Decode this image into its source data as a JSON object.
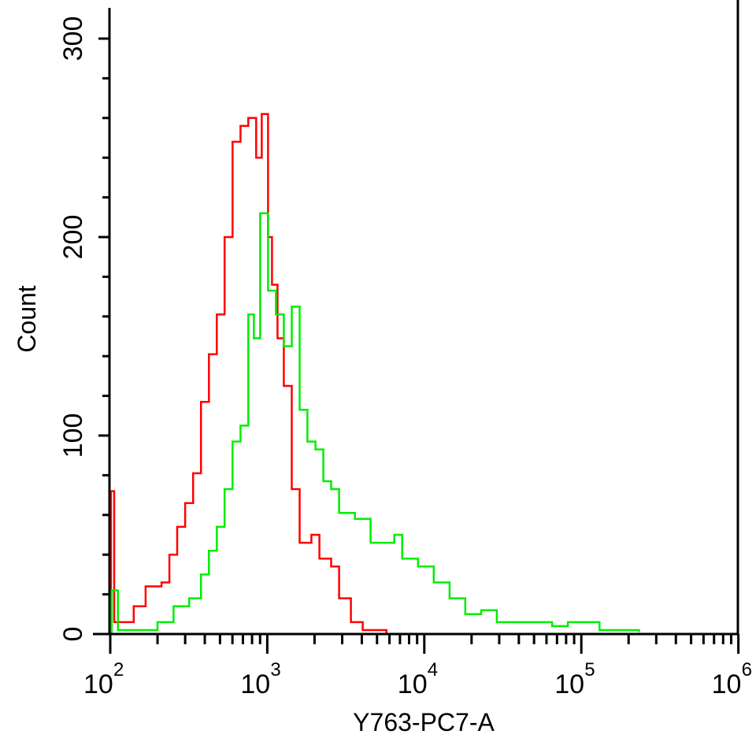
{
  "chart_data": {
    "type": "line",
    "title": "",
    "xlabel": "Y763-PC7-A",
    "ylabel": "Count",
    "xscale": "log",
    "xlim": [
      100,
      1000000
    ],
    "ylim": [
      0,
      300
    ],
    "grid": false,
    "x_tick_labels": [
      {
        "base": "10",
        "exp": "2",
        "value": 100
      },
      {
        "base": "10",
        "exp": "3",
        "value": 1000
      },
      {
        "base": "10",
        "exp": "4",
        "value": 10000
      },
      {
        "base": "10",
        "exp": "5",
        "value": 100000
      },
      {
        "base": "10",
        "exp": "6",
        "value": 1000000
      }
    ],
    "y_tick_labels": [
      {
        "label": "0",
        "value": 0
      },
      {
        "label": "100",
        "value": 100
      },
      {
        "label": "200",
        "value": 200
      },
      {
        "label": "300",
        "value": 300
      }
    ],
    "series": [
      {
        "name": "red",
        "color": "#ff0000",
        "x": [
          100,
          101,
          106,
          126,
          141,
          168,
          212,
          238,
          267,
          300,
          337,
          378,
          425,
          477,
          535,
          601,
          675,
          757,
          850,
          922,
          1012,
          1072,
          1162,
          1275,
          1432,
          1608,
          1910,
          2147,
          2551,
          2865,
          3408,
          4055,
          5740
        ],
        "y": [
          0,
          72,
          6,
          6,
          14,
          24,
          26,
          40,
          54,
          66,
          81,
          117,
          141,
          161,
          200,
          248,
          256,
          260,
          240,
          262,
          200,
          176,
          149,
          125,
          73,
          46,
          50,
          38,
          34,
          18,
          6,
          2,
          0
        ]
      },
      {
        "name": "green",
        "color": "#00ee00",
        "x": [
          100,
          102,
          112,
          159,
          200,
          253,
          318,
          378,
          425,
          477,
          535,
          601,
          675,
          757,
          822,
          901,
          1012,
          1135,
          1275,
          1432,
          1608,
          1803,
          2027,
          2275,
          2551,
          2865,
          3614,
          4550,
          6442,
          7228,
          9120,
          11480,
          14490,
          18240,
          23010,
          28970,
          46030,
          65160,
          82220,
          130600,
          232800
        ],
        "y": [
          0,
          22,
          2,
          2,
          6,
          14,
          18,
          30,
          42,
          54,
          73,
          97,
          105,
          161,
          149,
          212,
          173,
          161,
          145,
          165,
          113,
          97,
          93,
          77,
          73,
          61,
          58,
          46,
          50,
          38,
          34,
          26,
          18,
          10,
          12,
          6,
          6,
          4,
          6,
          2,
          1
        ]
      }
    ]
  }
}
